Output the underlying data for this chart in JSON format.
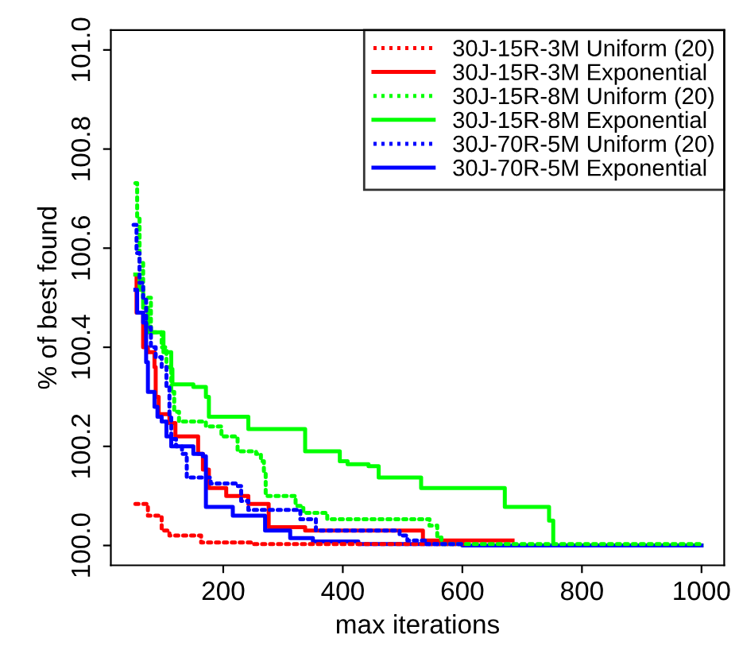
{
  "chart_data": {
    "type": "step",
    "xlabel": "max iterations",
    "ylabel": "% of best found",
    "xlim": [
      12,
      1038
    ],
    "xticks": [
      200,
      400,
      600,
      800,
      1000
    ],
    "ylim": [
      99.96,
      101.04
    ],
    "yticks": [
      {
        "value": 100,
        "label": "100.0"
      },
      100.2,
      100.4,
      100.6,
      100.8,
      {
        "value": 101,
        "label": "101.0"
      }
    ],
    "legend": "top right",
    "grid": false,
    "marker": "none",
    "series": [
      {
        "name": "30J-15R-3M Uniform (20)",
        "color": "#ff0000",
        "line_style": "dotted",
        "x": [
          53,
          74,
          97,
          110,
          163,
          250,
          610
        ],
        "values": [
          100.084,
          100.06,
          100.03,
          100.02,
          100.006,
          100.003,
          100.003
        ]
      },
      {
        "name": "30J-15R-3M Exponential",
        "color": "#ff0000",
        "line_style": "solid",
        "x": [
          53,
          55,
          66,
          74,
          85,
          87,
          92,
          110,
          120,
          158,
          166,
          176,
          205,
          242,
          276,
          337,
          534,
          684
        ],
        "values": [
          100.547,
          100.47,
          100.4,
          100.39,
          100.36,
          100.3,
          100.265,
          100.247,
          100.22,
          100.185,
          100.153,
          100.116,
          100.1,
          100.084,
          100.037,
          100.03,
          100.01,
          100.01
        ]
      },
      {
        "name": "30J-15R-8M Uniform (20)",
        "color": "#00ff00",
        "line_style": "dotted",
        "x": [
          53,
          56,
          60,
          66,
          79,
          97,
          105,
          113,
          118,
          126,
          171,
          197,
          224,
          255,
          263,
          268,
          271,
          321,
          334,
          374,
          545,
          558,
          565,
          1000
        ],
        "values": [
          100.731,
          100.66,
          100.57,
          100.5,
          100.43,
          100.4,
          100.36,
          100.31,
          100.27,
          100.25,
          100.24,
          100.22,
          100.19,
          100.185,
          100.17,
          100.15,
          100.1,
          100.08,
          100.066,
          100.053,
          100.04,
          100.016,
          100.003,
          100.003
        ]
      },
      {
        "name": "30J-15R-8M Exponential",
        "color": "#00ff00",
        "line_style": "solid",
        "x": [
          53,
          60,
          66,
          74,
          100,
          113,
          115,
          150,
          171,
          176,
          242,
          337,
          395,
          408,
          443,
          460,
          531,
          671,
          745,
          752,
          1000
        ],
        "values": [
          100.547,
          100.516,
          100.48,
          100.43,
          100.39,
          100.356,
          100.325,
          100.32,
          100.3,
          100.26,
          100.235,
          100.19,
          100.17,
          100.164,
          100.16,
          100.137,
          100.116,
          100.078,
          100.05,
          100.0,
          100.0
        ]
      },
      {
        "name": "30J-70R-5M Uniform (20)",
        "color": "#0000ff",
        "line_style": "dotted",
        "x": [
          50,
          55,
          60,
          66,
          71,
          79,
          87,
          97,
          105,
          110,
          113,
          121,
          131,
          139,
          179,
          224,
          230,
          242,
          329,
          355,
          495,
          508,
          540,
          600
        ],
        "values": [
          100.647,
          100.59,
          100.53,
          100.5,
          100.44,
          100.4,
          100.38,
          100.36,
          100.32,
          100.26,
          100.215,
          100.2,
          100.185,
          100.137,
          100.125,
          100.12,
          100.09,
          100.072,
          100.053,
          100.03,
          100.02,
          100.01,
          100.003,
          100.003
        ]
      },
      {
        "name": "30J-70R-5M Exponential",
        "color": "#0000ff",
        "line_style": "solid",
        "x": [
          53,
          56,
          66,
          71,
          74,
          85,
          90,
          97,
          105,
          113,
          150,
          166,
          171,
          216,
          270,
          312,
          350,
          426,
          600,
          1000
        ],
        "values": [
          100.516,
          100.47,
          100.45,
          100.37,
          100.31,
          100.28,
          100.26,
          100.25,
          100.22,
          100.2,
          100.185,
          100.18,
          100.078,
          100.06,
          100.03,
          100.015,
          100.008,
          100.003,
          100.0,
          100.0
        ]
      }
    ]
  }
}
